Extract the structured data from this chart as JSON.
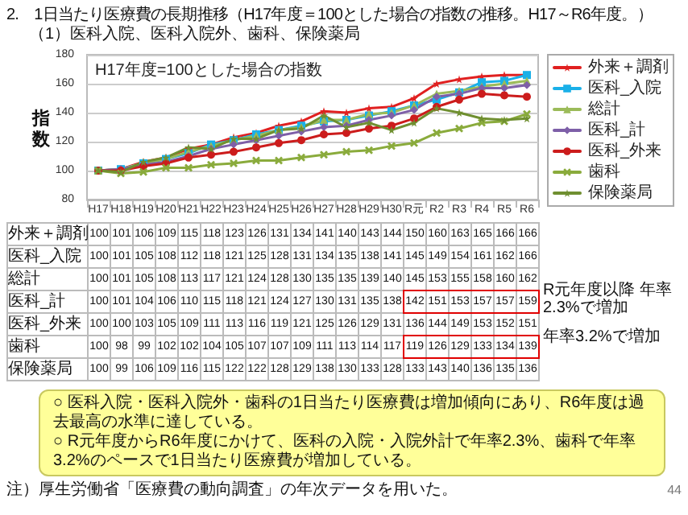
{
  "chart_data": {
    "type": "line",
    "title": "2.　1日当たり医療費の長期推移（H17年度＝100とした場合の指数の推移。H17～R6年度。）",
    "subtitle": "（1）医科入院、医科入院外、歯科、保険薬局",
    "ylabel": "指数",
    "categories": [
      "H17",
      "H18",
      "H19",
      "H20",
      "H21",
      "H22",
      "H23",
      "H24",
      "H25",
      "H26",
      "H27",
      "H28",
      "H29",
      "H30",
      "R元",
      "R2",
      "R3",
      "R4",
      "R5",
      "R6"
    ],
    "series": [
      {
        "name": "外来＋調剤",
        "color": "#e02020",
        "marker": "star",
        "values": [
          100,
          101,
          106,
          109,
          115,
          118,
          123,
          126,
          131,
          134,
          141,
          140,
          143,
          144,
          150,
          160,
          163,
          165,
          166,
          166
        ]
      },
      {
        "name": "医科_入院",
        "color": "#1ab0e8",
        "marker": "square",
        "values": [
          100,
          101,
          105,
          108,
          112,
          118,
          121,
          125,
          128,
          131,
          134,
          135,
          138,
          141,
          145,
          149,
          154,
          161,
          162,
          166
        ]
      },
      {
        "name": "総計",
        "color": "#9bbb59",
        "marker": "triangle",
        "values": [
          100,
          101,
          105,
          108,
          113,
          117,
          121,
          124,
          128,
          130,
          135,
          135,
          139,
          140,
          145,
          153,
          155,
          158,
          160,
          162
        ]
      },
      {
        "name": "医科_計",
        "color": "#7e5fa8",
        "marker": "diamond",
        "values": [
          100,
          101,
          104,
          106,
          110,
          115,
          118,
          121,
          124,
          127,
          130,
          131,
          135,
          138,
          142,
          151,
          153,
          157,
          157,
          159
        ]
      },
      {
        "name": "医科_外来",
        "color": "#cc1c1c",
        "marker": "circle",
        "values": [
          100,
          100,
          103,
          105,
          109,
          111,
          113,
          116,
          119,
          121,
          125,
          126,
          129,
          131,
          136,
          144,
          149,
          153,
          152,
          151
        ]
      },
      {
        "name": "歯科",
        "color": "#8aab3c",
        "marker": "cross",
        "values": [
          100,
          98,
          99,
          102,
          102,
          104,
          105,
          107,
          107,
          109,
          111,
          113,
          114,
          117,
          119,
          126,
          129,
          133,
          134,
          139
        ]
      },
      {
        "name": "保険薬局",
        "color": "#6f8f30",
        "marker": "star",
        "values": [
          100,
          99,
          106,
          109,
          116,
          115,
          122,
          122,
          128,
          129,
          138,
          130,
          133,
          128,
          133,
          143,
          140,
          136,
          135,
          136
        ]
      }
    ],
    "ylim": [
      80,
      180
    ],
    "yticks": [
      80,
      100,
      120,
      140,
      160,
      180
    ],
    "grid": "y",
    "legend": "right",
    "data_labels": true,
    "annotations": [
      "H17年度=100とした場合の指数",
      "R元年度以降 年率2.3%で増加",
      "年率3.2%で増加",
      "○ 医科入院・医科入院外・歯科の1日当たり医療費は増加傾向にあり、R6年度は過去最高の水準に達している。",
      "○ R元年度からR6年度にかけて、医科の入院・入院外計で年率2.3%、歯科で年率3.2%のペースで1日当たり医療費が増加している。",
      "注）厚生労働省「医療費の動向調査」の年次データを用いた。",
      "44"
    ]
  }
}
